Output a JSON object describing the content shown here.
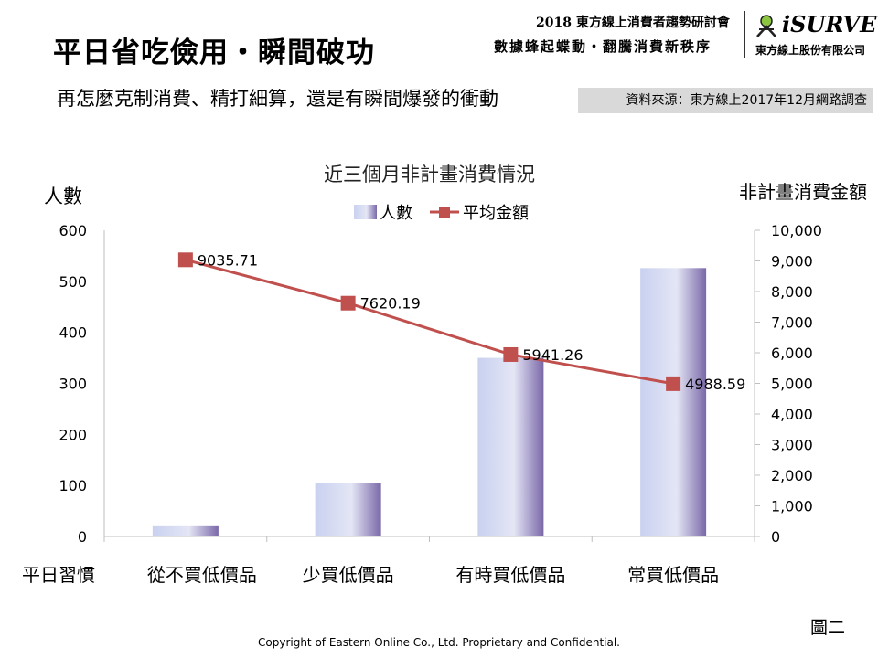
{
  "header": {
    "title": "平日省吃儉用・瞬間破功",
    "subtitle": "再怎麼克制消費、精打細算，還是有瞬間爆發的衝動",
    "source": "資料來源：東方線上2017年12月網路調查",
    "conference_line1": "2018 東方線上消費者趨勢研討會",
    "conference_line2": "數據蜂起蝶動・翻騰消費新秩序",
    "logo_text": "iSURVEY",
    "logo_company": "東方線上股份有限公司"
  },
  "chart_data": {
    "type": "bar",
    "title": "近三個月非計畫消費情況",
    "ylabel_left": "人數",
    "ylabel_right": "非計畫消費金額",
    "x_group_label": "平日習慣",
    "categories": [
      "從不買低價品",
      "少買低價品",
      "有時買低價品",
      "常買低價品"
    ],
    "series": [
      {
        "name": "人數",
        "type": "bar",
        "axis": "left",
        "values": [
          20,
          105,
          350,
          526
        ]
      },
      {
        "name": "平均金額",
        "type": "line",
        "axis": "right",
        "values": [
          9035.71,
          7620.19,
          5941.26,
          4988.59
        ],
        "labels": [
          "9035.71",
          "7620.19",
          "5941.26",
          "4988.59"
        ]
      }
    ],
    "ylim_left": [
      0,
      600
    ],
    "yticks_left": [
      "0",
      "100",
      "200",
      "300",
      "400",
      "500",
      "600"
    ],
    "ylim_right": [
      0,
      10000
    ],
    "yticks_right": [
      "0",
      "1,000",
      "2,000",
      "3,000",
      "4,000",
      "5,000",
      "6,000",
      "7,000",
      "8,000",
      "9,000",
      "10,000"
    ],
    "legend_position": "top-center",
    "grid": false,
    "colors": {
      "bar_light": "#c9d1f0",
      "bar_mid": "#e4e6f5",
      "bar_dark": "#7a68a8",
      "line": "#c0504d",
      "marker": "#c0504d"
    }
  },
  "footer": {
    "copyright": "Copyright of Eastern Online  Co., Ltd. Proprietary and Confidential.",
    "figure_label": "圖二"
  }
}
